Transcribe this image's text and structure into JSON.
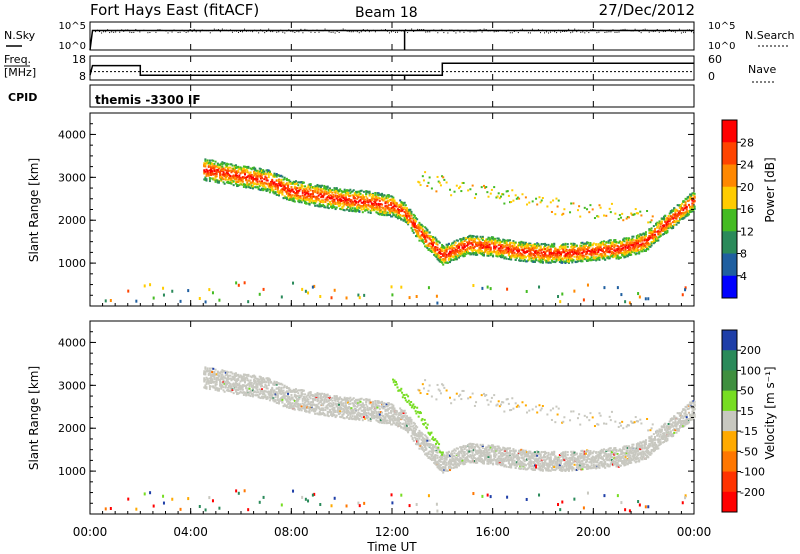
{
  "header": {
    "station": "Fort Hays East (fitACF)",
    "beam": "Beam 18",
    "date": "27/Dec/2012"
  },
  "nsky_panel": {
    "left_label": "N.Sky",
    "left_ticks": [
      "10^5",
      "10^0"
    ],
    "right_ticks": [
      "10^5",
      "10^0"
    ],
    "right_label": "N.Search"
  },
  "freq_panel": {
    "left_label_1": "Freq.",
    "left_label_2": "[MHz]",
    "left_ticks": [
      "18",
      "8"
    ],
    "right_ticks": [
      "60",
      "0"
    ],
    "right_label": "Nave"
  },
  "cpid_panel": {
    "label": "CPID",
    "value": "themis -3300 IF"
  },
  "colorbars": {
    "power": {
      "label": "Power [dB]",
      "ticks": [
        "28",
        "24",
        "20",
        "16",
        "12",
        "8",
        "4"
      ],
      "colors": [
        "#ff0000",
        "#ff4400",
        "#ff8800",
        "#ffcc00",
        "#44bb22",
        "#2a8a5a",
        "#1f5fa0",
        "#0000ff"
      ]
    },
    "velocity": {
      "label": "Velocity [m s⁻¹]",
      "ticks": [
        "200",
        "100",
        "50",
        "15",
        "-15",
        "-50",
        "-100",
        "-200"
      ],
      "colors": [
        "#1f3fa8",
        "#2a8a5a",
        "#3f8f3f",
        "#77dd22",
        "#c8c8c0",
        "#ffaa00",
        "#ff7700",
        "#ff3300",
        "#ff0000"
      ]
    }
  },
  "axes": {
    "ylabel": "Slant Range [km]",
    "yticks": [
      "4000",
      "3000",
      "2000",
      "1000"
    ],
    "xticks": [
      "00:00",
      "04:00",
      "08:00",
      "12:00",
      "16:00",
      "20:00",
      "00:00"
    ],
    "xlabel": "Time UT"
  },
  "chart_data": [
    {
      "type": "heatmap",
      "panel": "power",
      "x_unit": "hours UT",
      "xlim": [
        0,
        24
      ],
      "ylim": [
        0,
        4500
      ],
      "value_label": "Power [dB]",
      "value_range": [
        0,
        32
      ],
      "band_main": [
        [
          4.5,
          3200
        ],
        [
          6.0,
          3050
        ],
        [
          7.0,
          2950
        ],
        [
          8.0,
          2700
        ],
        [
          9.0,
          2600
        ],
        [
          10.0,
          2500
        ],
        [
          11.0,
          2450
        ],
        [
          12.0,
          2350
        ],
        [
          12.5,
          2200
        ],
        [
          13.0,
          1800
        ],
        [
          14.0,
          1200
        ],
        [
          15.0,
          1450
        ],
        [
          16.0,
          1400
        ],
        [
          17.0,
          1300
        ],
        [
          18.0,
          1250
        ],
        [
          19.0,
          1250
        ],
        [
          20.0,
          1300
        ],
        [
          21.0,
          1350
        ],
        [
          22.0,
          1500
        ],
        [
          23.0,
          2000
        ],
        [
          24.0,
          2500
        ]
      ],
      "band_upper": [
        [
          13.0,
          3000
        ],
        [
          15.0,
          2700
        ],
        [
          17.0,
          2500
        ],
        [
          19.0,
          2300
        ],
        [
          21.0,
          2200
        ],
        [
          22.5,
          2100
        ]
      ],
      "band_power_dB": 22
    },
    {
      "type": "heatmap",
      "panel": "velocity",
      "x_unit": "hours UT",
      "xlim": [
        0,
        24
      ],
      "ylim": [
        0,
        4500
      ],
      "value_label": "Velocity [m s⁻¹]",
      "value_range": [
        -200,
        200
      ],
      "band_velocity": 0,
      "streak_velocity": 50,
      "streak": [
        [
          12.0,
          3100
        ],
        [
          13.0,
          2400
        ],
        [
          14.0,
          1400
        ]
      ]
    },
    {
      "type": "line",
      "panel": "nsky",
      "series": [
        {
          "values": [
            [
              0,
              1
            ],
            [
              0.1,
              3000
            ],
            [
              12.5,
              3000
            ],
            [
              12.5,
              1
            ],
            [
              12.5,
              3000
            ],
            [
              24,
              3000
            ]
          ]
        }
      ]
    },
    {
      "type": "line",
      "panel": "freq",
      "series": [
        {
          "values": [
            [
              0,
              10
            ],
            [
              0.1,
              14
            ],
            [
              2.0,
              14
            ],
            [
              2.0,
              10
            ],
            [
              12.5,
              10
            ],
            [
              12.5,
              8
            ],
            [
              12.5,
              10
            ],
            [
              14,
              10
            ],
            [
              14,
              15
            ],
            [
              24,
              15
            ]
          ]
        }
      ]
    }
  ]
}
